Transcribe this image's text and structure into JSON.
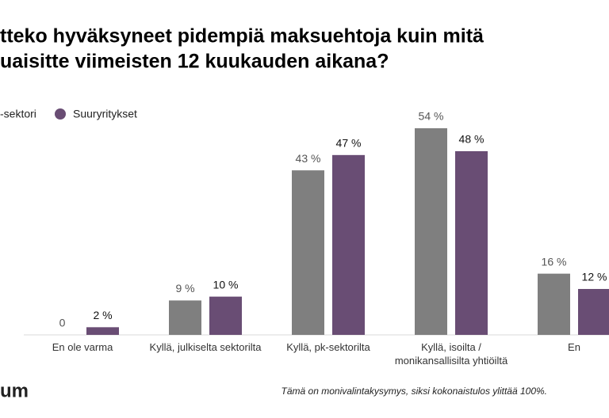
{
  "chart_data": {
    "type": "bar",
    "title": [
      "tteko hyväksyneet pidempiä maksuehtoja kuin mitä",
      "uaisitte viimeisten 12 kuukauden aikana?"
    ],
    "categories": [
      "En ole varma",
      "Kyllä, julkiselta sektorilta",
      "Kyllä, pk-sektorilta",
      "Kyllä, isoilta / monikansallisilta yhtiöiltä",
      "En"
    ],
    "series": [
      {
        "name": "-sektori",
        "color": "#7f7f7f",
        "values": [
          0,
          9,
          43,
          54,
          16
        ],
        "value_labels": [
          "0",
          "9 %",
          "43 %",
          "54 %",
          "16 %"
        ]
      },
      {
        "name": "Suuryritykset",
        "color": "#694d74",
        "values": [
          2,
          10,
          47,
          48,
          12
        ],
        "value_labels": [
          "2 %",
          "10 %",
          "47 %",
          "48 %",
          "12 %"
        ]
      }
    ],
    "ylim": [
      0,
      60
    ],
    "note": "Tämä on monivalintakysymys, siksi kokonaistulos ylittää 100%.",
    "logo": "um"
  }
}
